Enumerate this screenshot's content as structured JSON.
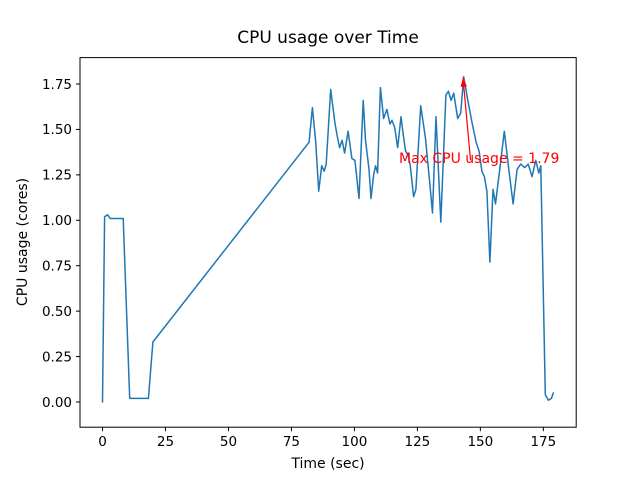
{
  "figure": {
    "background": "#ffffff",
    "frame_color": "#000000"
  },
  "chart_data": {
    "type": "line",
    "title": "CPU usage over Time",
    "xlabel": "Time (sec)",
    "ylabel": "CPU usage (cores)",
    "xlim": [
      -8.95,
      188.05
    ],
    "ylim": [
      -0.1387,
      1.8953
    ],
    "grid": false,
    "legend": "none",
    "xticks": {
      "values": [
        0,
        25,
        50,
        75,
        100,
        125,
        150,
        175
      ],
      "labels": [
        "0",
        "25",
        "50",
        "75",
        "100",
        "125",
        "150",
        "175"
      ]
    },
    "yticks": {
      "values": [
        0.0,
        0.25,
        0.5,
        0.75,
        1.0,
        1.25,
        1.5,
        1.75
      ],
      "labels": [
        "0.00",
        "0.25",
        "0.50",
        "0.75",
        "1.00",
        "1.25",
        "1.50",
        "1.75"
      ]
    },
    "series": [
      {
        "name": "CPU usage",
        "color": "#1f77b4",
        "linewidth": 1.5,
        "points": [
          [
            0,
            0.0
          ],
          [
            0.8,
            1.02
          ],
          [
            2,
            1.03
          ],
          [
            3,
            1.01
          ],
          [
            5,
            1.01
          ],
          [
            8.2,
            1.01
          ],
          [
            10.8,
            0.02
          ],
          [
            13,
            0.02
          ],
          [
            15,
            0.02
          ],
          [
            18.2,
            0.02
          ],
          [
            20,
            0.33
          ],
          [
            82,
            1.43
          ],
          [
            83.3,
            1.62
          ],
          [
            84.6,
            1.44
          ],
          [
            85.8,
            1.16
          ],
          [
            87,
            1.3
          ],
          [
            88,
            1.27
          ],
          [
            88.8,
            1.31
          ],
          [
            90.6,
            1.72
          ],
          [
            92.2,
            1.54
          ],
          [
            93.1,
            1.47
          ],
          [
            94.1,
            1.4
          ],
          [
            95.1,
            1.44
          ],
          [
            96.1,
            1.37
          ],
          [
            97.5,
            1.49
          ],
          [
            99,
            1.34
          ],
          [
            100.2,
            1.33
          ],
          [
            100.9,
            1.24
          ],
          [
            101.8,
            1.12
          ],
          [
            103.5,
            1.66
          ],
          [
            104.4,
            1.44
          ],
          [
            105.2,
            1.35
          ],
          [
            105.8,
            1.28
          ],
          [
            106.6,
            1.12
          ],
          [
            107.6,
            1.25
          ],
          [
            108.4,
            1.3
          ],
          [
            109.2,
            1.26
          ],
          [
            110.3,
            1.73
          ],
          [
            111.6,
            1.56
          ],
          [
            112.9,
            1.61
          ],
          [
            114.1,
            1.53
          ],
          [
            114.9,
            1.55
          ],
          [
            116,
            1.51
          ],
          [
            117.2,
            1.4
          ],
          [
            118.5,
            1.57
          ],
          [
            119.5,
            1.46
          ],
          [
            120.3,
            1.38
          ],
          [
            121.3,
            1.36
          ],
          [
            122.2,
            1.3
          ],
          [
            123.5,
            1.13
          ],
          [
            124.4,
            1.17
          ],
          [
            126.3,
            1.63
          ],
          [
            127.4,
            1.53
          ],
          [
            128.2,
            1.45
          ],
          [
            128.9,
            1.35
          ],
          [
            129.8,
            1.22
          ],
          [
            131,
            1.04
          ],
          [
            132.4,
            1.57
          ],
          [
            134.3,
            0.99
          ],
          [
            136.3,
            1.69
          ],
          [
            137.3,
            1.71
          ],
          [
            138.4,
            1.66
          ],
          [
            139.4,
            1.7
          ],
          [
            141,
            1.56
          ],
          [
            142.2,
            1.59
          ],
          [
            143.4,
            1.79
          ],
          [
            145,
            1.66
          ],
          [
            146.8,
            1.53
          ],
          [
            148.3,
            1.43
          ],
          [
            149.5,
            1.38
          ],
          [
            150.6,
            1.27
          ],
          [
            151.6,
            1.24
          ],
          [
            152.6,
            1.16
          ],
          [
            153.8,
            0.77
          ],
          [
            155,
            1.17
          ],
          [
            156,
            1.09
          ],
          [
            157.5,
            1.26
          ],
          [
            159.5,
            1.49
          ],
          [
            161.3,
            1.28
          ],
          [
            163,
            1.09
          ],
          [
            164.6,
            1.28
          ],
          [
            166,
            1.31
          ],
          [
            167.6,
            1.29
          ],
          [
            169,
            1.31
          ],
          [
            170.5,
            1.24
          ],
          [
            172,
            1.33
          ],
          [
            173.2,
            1.26
          ],
          [
            174,
            1.3
          ],
          [
            175.8,
            0.04
          ],
          [
            177,
            0.01
          ],
          [
            178.2,
            0.02
          ],
          [
            179,
            0.05
          ]
        ]
      }
    ],
    "annotation": {
      "text": "Max CPU usage = 1.79",
      "color": "#ff0000",
      "text_xy": [
        117.7,
        1.315
      ],
      "arrow_from": [
        146.1,
        1.33
      ],
      "arrow_to": [
        143.1,
        1.785
      ]
    }
  }
}
